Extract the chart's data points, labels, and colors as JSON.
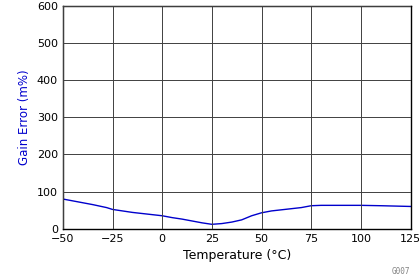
{
  "title": "",
  "xlabel": "Temperature (°C)",
  "ylabel": "Gain Error (m%)",
  "ylabel_color": "#0000CD",
  "xlabel_color": "#000000",
  "line_color": "#0000CC",
  "xlim": [
    -50,
    125
  ],
  "ylim": [
    0,
    600
  ],
  "xticks": [
    -50,
    -25,
    0,
    25,
    50,
    75,
    100,
    125
  ],
  "yticks": [
    0,
    100,
    200,
    300,
    400,
    500,
    600
  ],
  "grid_color": "#404040",
  "background_color": "#ffffff",
  "watermark": "G007",
  "x_data": [
    -50,
    -42,
    -35,
    -28,
    -25,
    -20,
    -15,
    -10,
    -5,
    0,
    5,
    10,
    15,
    20,
    25,
    30,
    35,
    40,
    45,
    50,
    55,
    60,
    65,
    70,
    75,
    80,
    90,
    100,
    110,
    125
  ],
  "y_data": [
    80,
    72,
    65,
    57,
    52,
    48,
    44,
    41,
    38,
    35,
    30,
    26,
    21,
    16,
    12,
    14,
    18,
    24,
    35,
    43,
    48,
    51,
    54,
    57,
    62,
    63,
    63,
    63,
    62,
    60
  ]
}
